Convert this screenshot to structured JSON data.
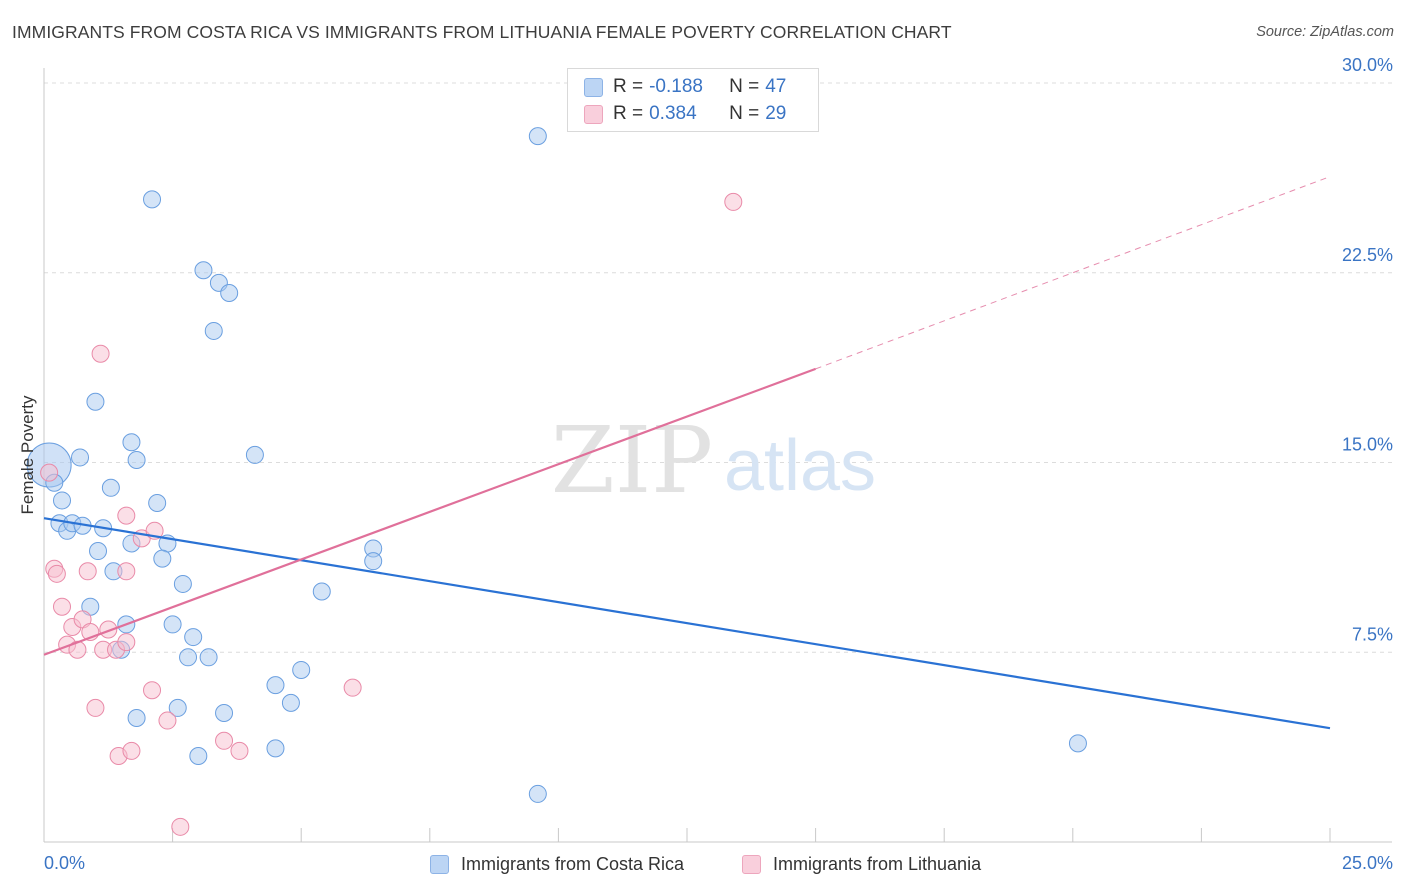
{
  "title": "IMMIGRANTS FROM COSTA RICA VS IMMIGRANTS FROM LITHUANIA FEMALE POVERTY CORRELATION CHART",
  "source": "Source: ZipAtlas.com",
  "watermark": {
    "zip": "ZIP",
    "atlas": "atlas"
  },
  "legend": {
    "r_label": "R =",
    "n_label": "N =",
    "series": [
      {
        "name": "Immigrants from Costa Rica",
        "r": "-0.188",
        "n": "47",
        "color": "#a9c9f0",
        "stroke": "#6a9fe0"
      },
      {
        "name": "Immigrants from Lithuania",
        "r": "0.384",
        "n": "29",
        "color": "#f7bfd0",
        "stroke": "#e98aa8"
      }
    ]
  },
  "chart_data": {
    "type": "scatter",
    "title": "IMMIGRANTS FROM COSTA RICA VS IMMIGRANTS FROM LITHUANIA FEMALE POVERTY CORRELATION CHART",
    "xlabel": "",
    "ylabel": "Female Poverty",
    "xlim": [
      0,
      25
    ],
    "ylim": [
      0,
      30
    ],
    "x_tick_labels": [
      "0.0%",
      "25.0%"
    ],
    "y_ticks": [
      7.5,
      15.0,
      22.5,
      30.0
    ],
    "y_tick_labels": [
      "7.5%",
      "15.0%",
      "22.5%",
      "30.0%"
    ],
    "series": [
      {
        "name": "Immigrants from Costa Rica",
        "color": "#a9c9f0",
        "stroke": "#6a9fe0",
        "points": [
          [
            0.1,
            14.9
          ],
          [
            0.2,
            14.2
          ],
          [
            0.35,
            13.5
          ],
          [
            0.3,
            12.6
          ],
          [
            0.45,
            12.3
          ],
          [
            0.55,
            12.6
          ],
          [
            0.75,
            12.5
          ],
          [
            0.7,
            15.2
          ],
          [
            1.0,
            17.4
          ],
          [
            1.3,
            14.0
          ],
          [
            1.15,
            12.4
          ],
          [
            1.05,
            11.5
          ],
          [
            1.7,
            15.8
          ],
          [
            1.8,
            15.1
          ],
          [
            2.2,
            13.4
          ],
          [
            1.7,
            11.8
          ],
          [
            2.4,
            11.8
          ],
          [
            2.3,
            11.2
          ],
          [
            1.35,
            10.7
          ],
          [
            0.9,
            9.3
          ],
          [
            2.7,
            10.2
          ],
          [
            1.6,
            8.6
          ],
          [
            2.5,
            8.6
          ],
          [
            2.9,
            8.1
          ],
          [
            1.5,
            7.6
          ],
          [
            2.8,
            7.3
          ],
          [
            3.2,
            7.3
          ],
          [
            1.8,
            4.9
          ],
          [
            2.6,
            5.3
          ],
          [
            3.5,
            5.1
          ],
          [
            3.0,
            3.4
          ],
          [
            4.5,
            3.7
          ],
          [
            4.5,
            6.2
          ],
          [
            4.8,
            5.5
          ],
          [
            5.0,
            6.8
          ],
          [
            5.4,
            9.9
          ],
          [
            6.4,
            11.6
          ],
          [
            6.4,
            11.1
          ],
          [
            4.1,
            15.3
          ],
          [
            3.1,
            22.6
          ],
          [
            3.4,
            22.1
          ],
          [
            3.6,
            21.7
          ],
          [
            3.3,
            20.2
          ],
          [
            2.1,
            25.4
          ],
          [
            9.6,
            27.9
          ],
          [
            20.1,
            3.9
          ],
          [
            9.6,
            1.9
          ]
        ]
      },
      {
        "name": "Immigrants from Lithuania",
        "color": "#f7bfd0",
        "stroke": "#e98aa8",
        "points": [
          [
            0.1,
            14.6
          ],
          [
            0.2,
            10.8
          ],
          [
            0.25,
            10.6
          ],
          [
            0.35,
            9.3
          ],
          [
            0.45,
            7.8
          ],
          [
            0.55,
            8.5
          ],
          [
            0.65,
            7.6
          ],
          [
            0.75,
            8.8
          ],
          [
            0.9,
            8.3
          ],
          [
            0.85,
            10.7
          ],
          [
            1.1,
            19.3
          ],
          [
            1.15,
            7.6
          ],
          [
            1.25,
            8.4
          ],
          [
            1.4,
            7.6
          ],
          [
            1.6,
            7.9
          ],
          [
            1.6,
            10.7
          ],
          [
            1.9,
            12.0
          ],
          [
            1.6,
            12.9
          ],
          [
            2.15,
            12.3
          ],
          [
            2.1,
            6.0
          ],
          [
            1.0,
            5.3
          ],
          [
            1.45,
            3.4
          ],
          [
            1.7,
            3.6
          ],
          [
            2.4,
            4.8
          ],
          [
            3.5,
            4.0
          ],
          [
            3.8,
            3.6
          ],
          [
            6.0,
            6.1
          ],
          [
            2.65,
            0.6
          ],
          [
            13.4,
            25.3
          ]
        ]
      }
    ],
    "trendlines": [
      {
        "series": "Immigrants from Costa Rica",
        "x": [
          0,
          25
        ],
        "y": [
          12.8,
          4.5
        ],
        "style": "solid"
      },
      {
        "series": "Immigrants from Lithuania",
        "x": [
          0,
          15
        ],
        "y": [
          7.4,
          18.7
        ],
        "style": "solid"
      },
      {
        "series": "Immigrants from Lithuania",
        "x": [
          15,
          25
        ],
        "y": [
          18.7,
          26.3
        ],
        "style": "dashed"
      }
    ],
    "grid": true,
    "legend": "top-center"
  }
}
